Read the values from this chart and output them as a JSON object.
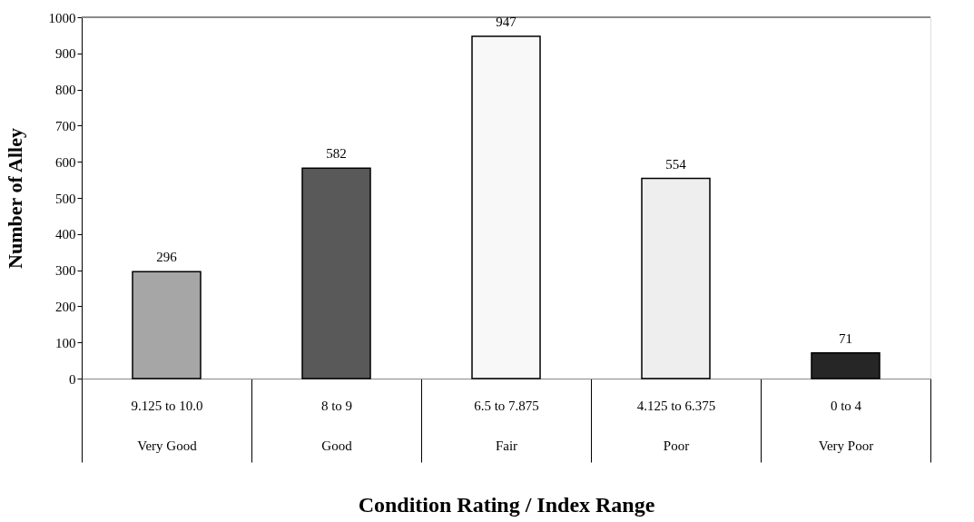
{
  "chart_data": {
    "type": "bar",
    "xlabel": "Condition Rating / Index Range",
    "ylabel": "Number of Alley",
    "categories": [
      "9.125 to 10.0\nVery Good",
      "8 to 9\nGood",
      "6.5 to 7.875\nFair",
      "4.125 to 6.375\nPoor",
      "0 to 4\nVery Poor"
    ],
    "values": [
      296,
      582,
      947,
      554,
      71
    ],
    "colors": [
      "#a6a6a6",
      "#595959",
      "#f8f8f8",
      "#eeeeee",
      "#262626"
    ],
    "ylim": [
      0,
      1000
    ],
    "yticks": [
      0,
      100,
      200,
      300,
      400,
      500,
      600,
      700,
      800,
      900,
      1000
    ],
    "data_labels": true,
    "grid": false
  }
}
